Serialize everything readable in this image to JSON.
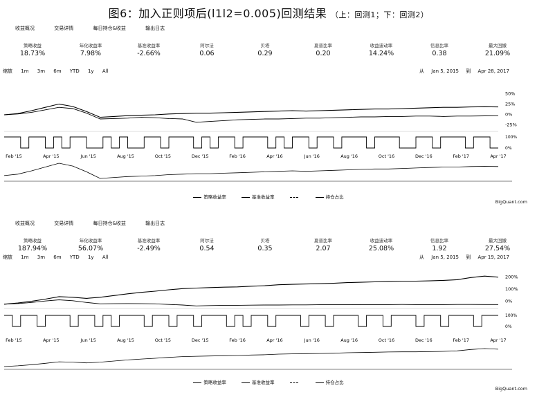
{
  "title": "图6：加入正则项后(l1l2=0.005)回测结果",
  "subtitle": "（上：回测1；下：回测2）",
  "colors": {
    "line": "#000000",
    "background": "#ffffff"
  },
  "chart_data": [
    {
      "type": "line",
      "tabs": [
        "收益概况",
        "交易详情",
        "每日持仓&收益",
        "输出日志"
      ],
      "stats": [
        {
          "label": "策略收益",
          "value": "18.73%"
        },
        {
          "label": "年化收益率",
          "value": "7.98%"
        },
        {
          "label": "基准收益率",
          "value": "-2.66%"
        },
        {
          "label": "阿尔法",
          "value": "0.06"
        },
        {
          "label": "贝塔",
          "value": "0.29"
        },
        {
          "label": "夏普比率",
          "value": "0.20"
        },
        {
          "label": "收益波动率",
          "value": "14.24%"
        },
        {
          "label": "信息比率",
          "value": "0.38"
        },
        {
          "label": "最大回撤",
          "value": "21.09%"
        }
      ],
      "zoom_label": "缩放",
      "ranges": [
        "1m",
        "3m",
        "6m",
        "YTD",
        "1y",
        "All"
      ],
      "date_from_label": "从",
      "start_date": "Jan 5, 2015",
      "date_to_label": "到",
      "end_date": "Apr 28, 2017",
      "x_ticks": [
        "Feb '15",
        "Apr '15",
        "Jun '15",
        "Aug '15",
        "Oct '15",
        "Dec '15",
        "Feb '16",
        "Apr '16",
        "Jun '16",
        "Aug '16",
        "Oct '16",
        "Dec '16",
        "Feb '17",
        "Apr '17"
      ],
      "y_ticks": [
        "50%",
        "25%",
        "0%",
        "-25%"
      ],
      "ylim": [
        -40,
        60
      ],
      "pos_ticks": [
        "100%",
        "0%"
      ],
      "series": [
        {
          "name": "策略收益率",
          "values": [
            0,
            3,
            10,
            18,
            26,
            20,
            8,
            -6,
            -4,
            -2,
            -1,
            0,
            2,
            3,
            4,
            4,
            5,
            6,
            7,
            8,
            9,
            10,
            9,
            10,
            11,
            12,
            13,
            14,
            14,
            15,
            16,
            17,
            18,
            18,
            19,
            19.5,
            19
          ]
        },
        {
          "name": "基准收益率",
          "values": [
            0,
            2,
            6,
            12,
            18,
            15,
            4,
            -10,
            -9,
            -8,
            -6,
            -7,
            -9,
            -10,
            -18,
            -16,
            -14,
            -12,
            -11,
            -10,
            -10,
            -9,
            -8,
            -8,
            -7,
            -6,
            -5,
            -5,
            -4,
            -4,
            -3,
            -3,
            -4,
            -3,
            -3,
            -2.5,
            -2.7
          ]
        }
      ],
      "positions": [
        1,
        1,
        0,
        1,
        1,
        0,
        1,
        0,
        1,
        1,
        0,
        0,
        1,
        0,
        1,
        0,
        0,
        1,
        1,
        0,
        1,
        1,
        1,
        0,
        1,
        0,
        1,
        1,
        0,
        1,
        1,
        1,
        0,
        1,
        0,
        1,
        1,
        0,
        1,
        1,
        0,
        1,
        1,
        1,
        0,
        1,
        1,
        1,
        0,
        0,
        1,
        1,
        0,
        1,
        1,
        1,
        0,
        1,
        1,
        0
      ],
      "legend": [
        "策略收益率",
        "基准收益率",
        "",
        "持仓占比"
      ],
      "credit": "BigQuant.com"
    },
    {
      "type": "line",
      "tabs": [
        "收益概况",
        "交易详情",
        "每日持仓&收益",
        "输出日志"
      ],
      "stats": [
        {
          "label": "策略收益",
          "value": "187.94%"
        },
        {
          "label": "年化收益率",
          "value": "56.07%"
        },
        {
          "label": "基准收益率",
          "value": "-2.49%"
        },
        {
          "label": "阿尔法",
          "value": "0.54"
        },
        {
          "label": "贝塔",
          "value": "0.35"
        },
        {
          "label": "夏普比率",
          "value": "2.07"
        },
        {
          "label": "收益波动率",
          "value": "25.08%"
        },
        {
          "label": "信息比率",
          "value": "1.92"
        },
        {
          "label": "最大回撤",
          "value": "27.54%"
        }
      ],
      "zoom_label": "缩放",
      "ranges": [
        "1m",
        "3m",
        "6m",
        "YTD",
        "1y",
        "All"
      ],
      "date_from_label": "从",
      "start_date": "Jan 5, 2015",
      "date_to_label": "到",
      "end_date": "Apr 19, 2017",
      "x_ticks": [
        "Feb '15",
        "Apr '15",
        "Jun '15",
        "Aug '15",
        "Oct '15",
        "Dec '15",
        "Feb '16",
        "Apr '16",
        "Jun '16",
        "Aug '16",
        "Oct '16",
        "Dec '16",
        "Feb '17",
        "Apr '17"
      ],
      "y_ticks": [
        "200%",
        "100%",
        "0%"
      ],
      "ylim": [
        -30,
        220
      ],
      "pos_ticks": [
        "100%",
        "0%"
      ],
      "series": [
        {
          "name": "策略收益率",
          "values": [
            0,
            8,
            20,
            35,
            52,
            48,
            40,
            48,
            60,
            72,
            82,
            90,
            100,
            108,
            112,
            115,
            118,
            120,
            125,
            128,
            135,
            138,
            140,
            142,
            145,
            150,
            152,
            155,
            158,
            160,
            160,
            162,
            165,
            170,
            185,
            195,
            188
          ]
        },
        {
          "name": "基准收益率",
          "values": [
            0,
            4,
            12,
            22,
            30,
            24,
            12,
            2,
            3,
            4,
            3,
            2,
            -2,
            -6,
            -12,
            -10,
            -8,
            -8,
            -7,
            -6,
            -6,
            -5,
            -5,
            -4,
            -4,
            -4,
            -3,
            -3,
            -3,
            -2,
            -3,
            -3,
            -3,
            -2,
            -2,
            -2.5,
            -2.5
          ]
        }
      ],
      "positions": [
        1,
        0,
        1,
        1,
        0,
        1,
        1,
        1,
        0,
        1,
        1,
        0,
        1,
        0,
        1,
        1,
        1,
        0,
        1,
        1,
        0,
        1,
        1,
        0,
        1,
        1,
        1,
        0,
        1,
        0,
        1,
        1,
        0,
        1,
        1,
        1,
        0,
        1,
        1,
        0,
        1,
        1,
        1,
        0,
        1,
        1,
        0,
        1,
        1,
        1,
        0,
        1,
        1,
        0,
        1,
        1,
        1,
        0,
        1,
        1
      ],
      "legend": [
        "策略收益率",
        "基准收益率",
        "",
        "持仓占比"
      ],
      "credit": "BigQuant.com"
    }
  ]
}
